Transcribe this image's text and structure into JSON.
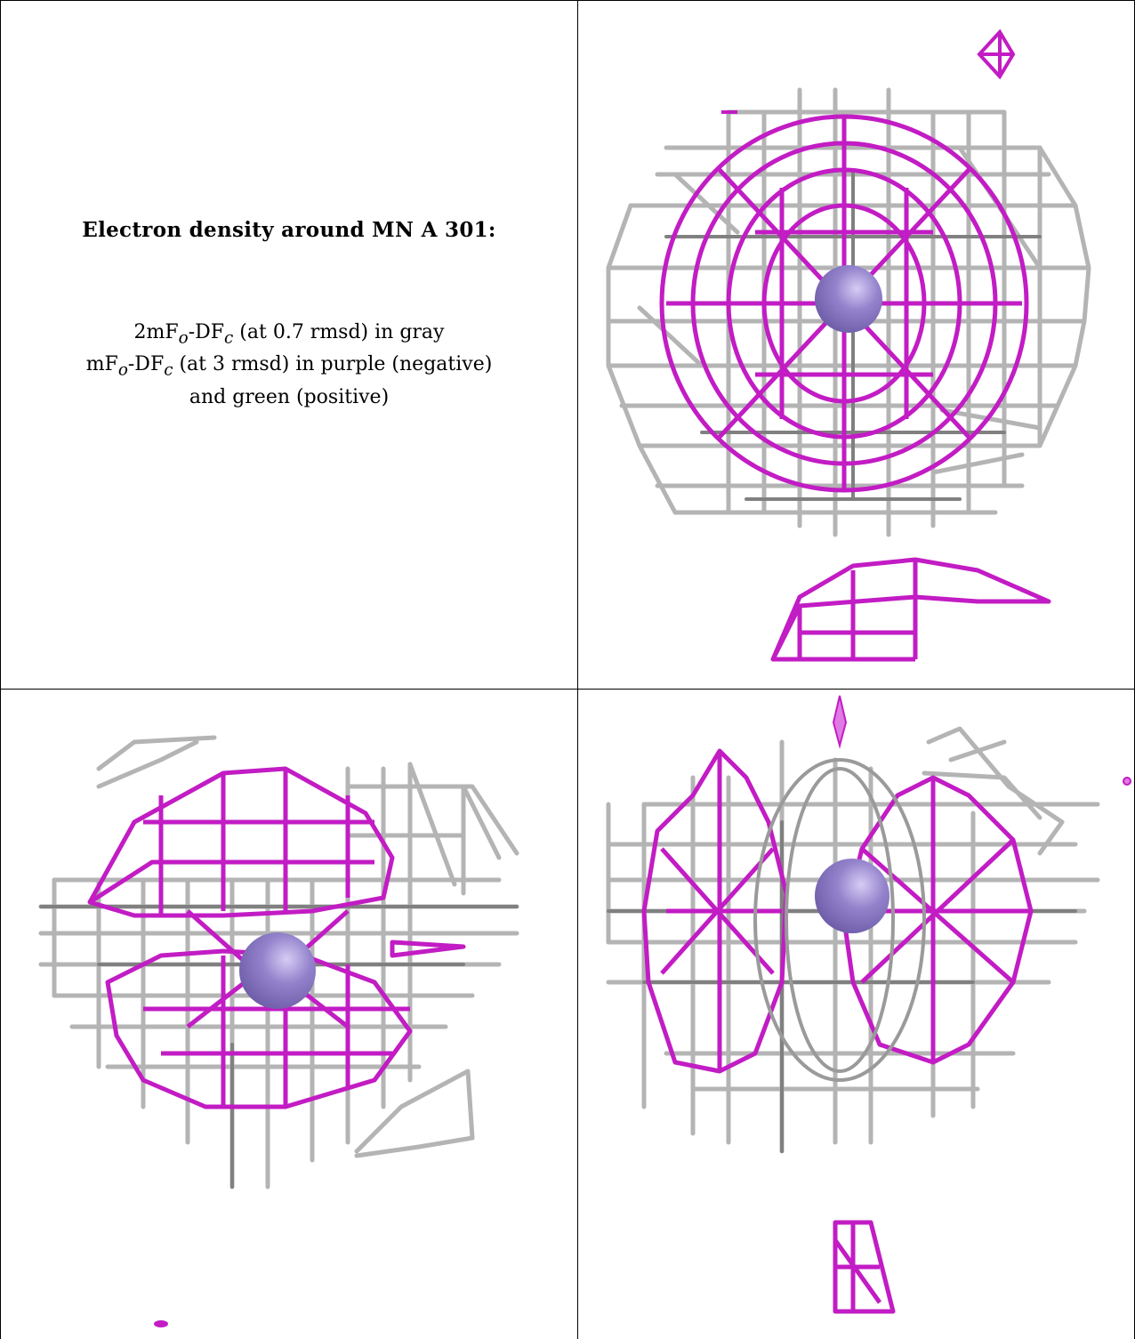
{
  "caption": {
    "title": "Electron density around MN A 301:",
    "line1": {
      "pre": "2mF",
      "sub1": "o",
      "mid": "-DF",
      "sub2": "c",
      "post": " (at 0.7 rmsd) in gray"
    },
    "line2": {
      "pre": "mF",
      "sub1": "o",
      "mid": "-DF",
      "sub2": "c",
      "post": " (at 3 rmsd) in purple (negative)"
    },
    "line3": "and green (positive)"
  },
  "colors": {
    "gray_mesh": "#b4b4b4",
    "gray_mesh_dark": "#7d7d7d",
    "purple_mesh": "#c21cc4",
    "purple_light": "#e07ae4",
    "atom": "#8a78c2",
    "atom_highlight": "#c8bbf0",
    "border": "#000000"
  },
  "panels": [
    {
      "id": "view-1",
      "atom": "MN A 301"
    },
    {
      "id": "view-2",
      "atom": "MN A 301"
    },
    {
      "id": "view-3",
      "atom": "MN A 301"
    }
  ]
}
